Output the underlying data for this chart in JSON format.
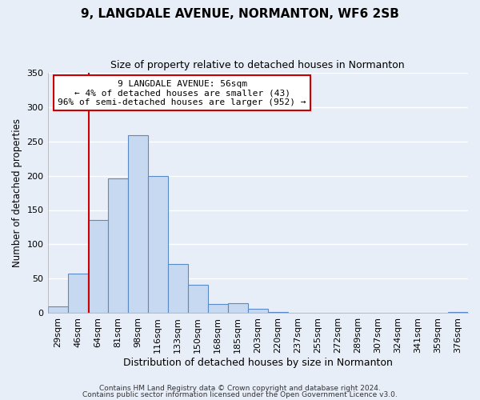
{
  "title": "9, LANGDALE AVENUE, NORMANTON, WF6 2SB",
  "subtitle": "Size of property relative to detached houses in Normanton",
  "xlabel": "Distribution of detached houses by size in Normanton",
  "ylabel": "Number of detached properties",
  "bar_labels": [
    "29sqm",
    "46sqm",
    "64sqm",
    "81sqm",
    "98sqm",
    "116sqm",
    "133sqm",
    "150sqm",
    "168sqm",
    "185sqm",
    "203sqm",
    "220sqm",
    "237sqm",
    "255sqm",
    "272sqm",
    "289sqm",
    "307sqm",
    "324sqm",
    "341sqm",
    "359sqm",
    "376sqm"
  ],
  "bar_heights": [
    10,
    57,
    136,
    196,
    259,
    200,
    71,
    41,
    13,
    14,
    6,
    2,
    0,
    0,
    0,
    0,
    0,
    0,
    0,
    0,
    2
  ],
  "bar_color": "#c6d9f0",
  "bar_edge_color": "#5a8ac6",
  "ylim": [
    0,
    350
  ],
  "yticks": [
    0,
    50,
    100,
    150,
    200,
    250,
    300,
    350
  ],
  "vline_color": "#cc0000",
  "annotation_title": "9 LANGDALE AVENUE: 56sqm",
  "annotation_line1": "← 4% of detached houses are smaller (43)",
  "annotation_line2": "96% of semi-detached houses are larger (952) →",
  "annotation_box_color": "#ffffff",
  "annotation_box_edge": "#cc0000",
  "footer1": "Contains HM Land Registry data © Crown copyright and database right 2024.",
  "footer2": "Contains public sector information licensed under the Open Government Licence v3.0.",
  "background_color": "#e8eef7",
  "grid_color": "#ffffff"
}
